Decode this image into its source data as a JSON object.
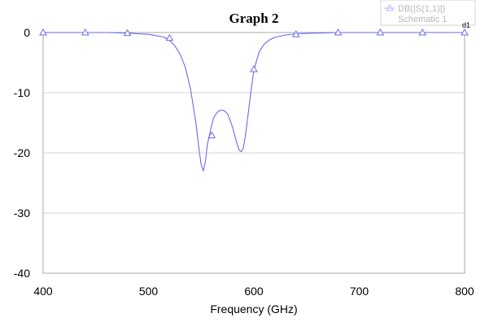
{
  "chart_data": {
    "type": "line",
    "title": "Graph 2",
    "xlabel": "Frequency (GHz)",
    "ylabel": "",
    "xlim": [
      400,
      800
    ],
    "ylim": [
      -40,
      0
    ],
    "x_ticks": [
      "400",
      "500",
      "600",
      "700",
      "800"
    ],
    "y_ticks": [
      "0",
      "-10",
      "-20",
      "-30",
      "-40"
    ],
    "grid": "horizontal",
    "legend_position": "top-right",
    "marker_tag": "d1",
    "series": [
      {
        "name": "DB(|S(1,1)|)",
        "source": "Schematic 1",
        "color": "#6a6af0",
        "marker": "triangle",
        "x": [
          400,
          420,
          440,
          460,
          480,
          490,
          500,
          510,
          515,
          520,
          525,
          530,
          535,
          540,
          545,
          548,
          550,
          552,
          554,
          556,
          558,
          560,
          562,
          565,
          568,
          570,
          572,
          575,
          578,
          580,
          582,
          584,
          586,
          588,
          590,
          592,
          595,
          598,
          600,
          605,
          610,
          615,
          620,
          630,
          640,
          660,
          680,
          700,
          750,
          800
        ],
        "values": [
          0,
          0,
          0,
          0,
          -0.1,
          -0.2,
          -0.3,
          -0.6,
          -0.8,
          -1.3,
          -2.2,
          -3.6,
          -5.8,
          -9.5,
          -15,
          -19.5,
          -22,
          -23,
          -21.5,
          -18.5,
          -17,
          -15.3,
          -14.1,
          -13.3,
          -12.9,
          -12.9,
          -13,
          -13.5,
          -14.8,
          -15.9,
          -17.2,
          -18.5,
          -19.5,
          -19.8,
          -19.2,
          -17.2,
          -13,
          -8.8,
          -6.3,
          -3.2,
          -1.9,
          -1.2,
          -0.8,
          -0.4,
          -0.2,
          -0.1,
          0,
          0,
          0,
          0
        ],
        "marker_x": [
          400,
          440,
          480,
          520,
          560,
          600,
          640,
          680,
          720,
          760,
          800
        ],
        "marker_values": [
          0,
          0,
          -0.1,
          -0.9,
          -17.1,
          -6.1,
          -0.3,
          0,
          0,
          0,
          0
        ]
      }
    ]
  }
}
